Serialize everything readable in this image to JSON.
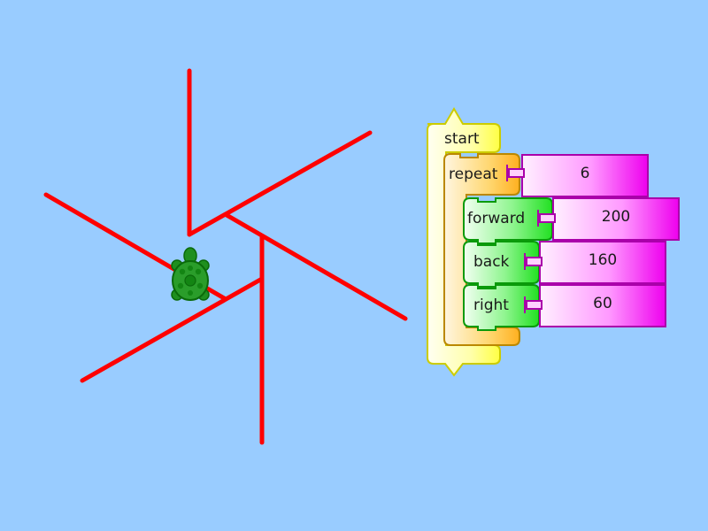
{
  "colors": {
    "background": "#99ccff",
    "drawing_line": "#ff0000",
    "turtle": "#008000",
    "start_block": "#ffff33",
    "repeat_block": "#ffbb22",
    "command_block": "#33ee33",
    "number_block": "#ee00ee"
  },
  "program": {
    "start_label": "start",
    "repeat": {
      "label": "repeat",
      "count": "6"
    },
    "commands": [
      {
        "label": "forward",
        "value": "200"
      },
      {
        "label": "back",
        "value": "160"
      },
      {
        "label": "right",
        "value": "60"
      }
    ]
  },
  "turtle": {
    "icon": "turtle-icon"
  }
}
